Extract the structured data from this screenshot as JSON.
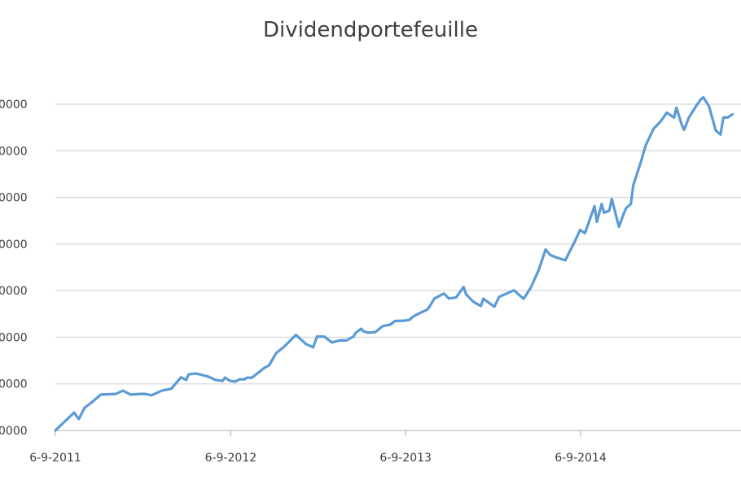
{
  "chart_data": {
    "type": "line",
    "title": "Dividendportefeuille",
    "xlabel": "",
    "ylabel": "",
    "x_tick_labels": [
      "6-9-2011",
      "6-9-2012",
      "6-9-2013",
      "6-9-2014"
    ],
    "y_tick_labels": [
      "0000",
      "0000",
      "0000",
      "0000",
      "0000",
      "0000",
      "0000",
      "0000"
    ],
    "grid": true,
    "legend": "none",
    "colors": {
      "series": "#5b9bd5",
      "grid": "#d9d9d9",
      "text": "#404040"
    },
    "series": [
      {
        "x": [
          "2011-09-06",
          "2011-10-15",
          "2011-10-25",
          "2011-11-06",
          "2011-11-20",
          "2011-12-10",
          "2012-01-10",
          "2012-01-25",
          "2012-02-10",
          "2012-03-01",
          "2012-03-10",
          "2012-03-25",
          "2012-04-15",
          "2012-05-05",
          "2012-05-25",
          "2012-06-05",
          "2012-06-10",
          "2012-06-25",
          "2012-07-20",
          "2012-08-05",
          "2012-08-20",
          "2012-08-25",
          "2012-09-05",
          "2012-09-15",
          "2012-09-25",
          "2012-10-05",
          "2012-10-10",
          "2012-10-20",
          "2012-11-05",
          "2012-11-15",
          "2012-11-25",
          "2012-12-10",
          "2012-12-25",
          "2013-01-20",
          "2013-02-10",
          "2013-02-25",
          "2013-03-05",
          "2013-03-20",
          "2013-04-05",
          "2013-04-20",
          "2013-05-05",
          "2013-05-20",
          "2013-05-25",
          "2013-06-05",
          "2013-06-10",
          "2013-06-20",
          "2013-07-05",
          "2013-07-20",
          "2013-08-05",
          "2013-08-15",
          "2013-08-20",
          "2013-09-05",
          "2013-09-15",
          "2013-09-20",
          "2013-10-05",
          "2013-10-20",
          "2013-10-25",
          "2013-11-05",
          "2013-11-25",
          "2013-12-05",
          "2013-12-20",
          "2014-01-05",
          "2014-01-10",
          "2014-01-25",
          "2014-02-10",
          "2014-02-15",
          "2014-03-10",
          "2014-03-20",
          "2014-04-20",
          "2014-05-10",
          "2014-05-25",
          "2014-06-10",
          "2014-06-25",
          "2014-07-05",
          "2014-07-15",
          "2014-08-05",
          "2014-08-25",
          "2014-09-05",
          "2014-09-15",
          "2014-10-05",
          "2014-10-10",
          "2014-10-20",
          "2014-10-25",
          "2014-11-05",
          "2014-11-10",
          "2014-11-25",
          "2014-12-05",
          "2014-12-10",
          "2014-12-20",
          "2014-12-25",
          "2015-01-10",
          "2015-01-20",
          "2015-02-05",
          "2015-02-20",
          "2015-03-05",
          "2015-03-20",
          "2015-03-25",
          "2015-04-05",
          "2015-04-10",
          "2015-04-20",
          "2015-05-05",
          "2015-05-15",
          "2015-05-20",
          "2015-06-01",
          "2015-06-15",
          "2015-06-25",
          "2015-07-01",
          "2015-07-10",
          "2015-07-20"
        ],
        "y": [
          0.0,
          0.55,
          0.35,
          0.7,
          0.85,
          1.1,
          1.12,
          1.22,
          1.1,
          1.12,
          1.12,
          1.08,
          1.22,
          1.28,
          1.63,
          1.55,
          1.72,
          1.75,
          1.66,
          1.55,
          1.52,
          1.62,
          1.52,
          1.5,
          1.57,
          1.57,
          1.62,
          1.62,
          1.8,
          1.92,
          2.0,
          2.38,
          2.55,
          2.93,
          2.65,
          2.55,
          2.88,
          2.88,
          2.7,
          2.76,
          2.76,
          2.88,
          3.0,
          3.12,
          3.04,
          3.0,
          3.02,
          3.2,
          3.25,
          3.36,
          3.36,
          3.37,
          3.4,
          3.48,
          3.6,
          3.7,
          3.78,
          4.05,
          4.2,
          4.05,
          4.08,
          4.4,
          4.18,
          3.95,
          3.82,
          4.04,
          3.8,
          4.1,
          4.3,
          4.04,
          4.38,
          4.9,
          5.55,
          5.38,
          5.32,
          5.22,
          5.8,
          6.15,
          6.05,
          6.88,
          6.4,
          6.95,
          6.68,
          6.75,
          7.1,
          6.25,
          6.65,
          6.82,
          6.95,
          7.52,
          8.25,
          8.75,
          9.25,
          9.48,
          9.75,
          9.6,
          9.9,
          9.38,
          9.22,
          9.6,
          9.95,
          10.16,
          10.22,
          9.95,
          9.2,
          9.08,
          9.6,
          9.6,
          9.7
        ]
      }
    ]
  }
}
